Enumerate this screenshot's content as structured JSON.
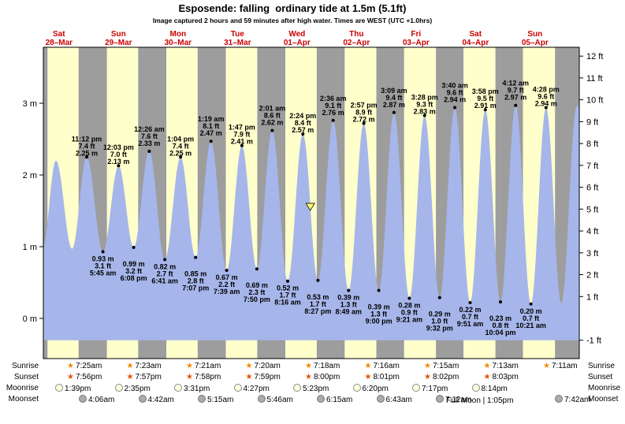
{
  "header": {
    "title": "Esposende: falling  ordinary tide at 1.5m (5.1ft)",
    "subtitle": "Image captured 2 hours and 59 minutes after high water. Times are WEST (UTC +1.0hrs)"
  },
  "colors": {
    "day_band": "#ffffcc",
    "night_band": "#9d9d9d",
    "tide_fill": "#a6b6ea",
    "day_label": "#cc0000",
    "marker_fill": "#ffff66",
    "text": "#000000"
  },
  "chart_data": {
    "type": "area",
    "x_range_days": [
      0.238,
      9.245
    ],
    "y_range_m": [
      -0.56,
      3.78
    ],
    "y_axis_left": [
      {
        "m": 3,
        "label": "3 m"
      },
      {
        "m": 2,
        "label": "2 m"
      },
      {
        "m": 1,
        "label": "1 m"
      },
      {
        "m": 0,
        "label": "0 m"
      }
    ],
    "y_axis_right": [
      {
        "ft": 12,
        "label": "12 ft"
      },
      {
        "ft": 11,
        "label": "11 ft"
      },
      {
        "ft": 10,
        "label": "10 ft"
      },
      {
        "ft": 9,
        "label": "9 ft"
      },
      {
        "ft": 8,
        "label": "8 ft"
      },
      {
        "ft": 7,
        "label": "7 ft"
      },
      {
        "ft": 6,
        "label": "6 ft"
      },
      {
        "ft": 5,
        "label": "5 ft"
      },
      {
        "ft": 4,
        "label": "4 ft"
      },
      {
        "ft": 3,
        "label": "3 ft"
      },
      {
        "ft": 2,
        "label": "2 ft"
      },
      {
        "ft": 1,
        "label": "1 ft"
      },
      {
        "ft": -1,
        "label": "-1 ft"
      }
    ],
    "days": [
      {
        "name": "Sat",
        "date": "28–Mar",
        "sunrise_h": 7.417,
        "sunset_h": 19.933
      },
      {
        "name": "Sun",
        "date": "29–Mar",
        "sunrise_h": 7.383,
        "sunset_h": 19.95
      },
      {
        "name": "Mon",
        "date": "30–Mar",
        "sunrise_h": 7.35,
        "sunset_h": 19.967
      },
      {
        "name": "Tue",
        "date": "31–Mar",
        "sunrise_h": 7.333,
        "sunset_h": 19.983
      },
      {
        "name": "Wed",
        "date": "01–Apr",
        "sunrise_h": 7.3,
        "sunset_h": 20.0
      },
      {
        "name": "Thu",
        "date": "02–Apr",
        "sunrise_h": 7.267,
        "sunset_h": 20.017
      },
      {
        "name": "Fri",
        "date": "03–Apr",
        "sunrise_h": 7.25,
        "sunset_h": 20.033
      },
      {
        "name": "Sat",
        "date": "04–Apr",
        "sunrise_h": 7.217,
        "sunset_h": 20.05
      },
      {
        "name": "Sun",
        "date": "05–Apr",
        "sunrise_h": 7.183,
        "sunset_h": 20.067
      }
    ],
    "events": [
      {
        "labeled": false,
        "day": 0,
        "hour": 5.3,
        "level": 0.95
      },
      {
        "labeled": false,
        "day": 0,
        "hour": 10.8,
        "level": 2.2
      },
      {
        "labeled": false,
        "day": 0,
        "hour": 17.3,
        "level": 0.97
      },
      {
        "labeled": true,
        "kind": "high",
        "day": 0,
        "hour": 23.2,
        "level": 2.25,
        "time": "11:12 pm",
        "ft": "7.4 ft",
        "m": "2.25 m",
        "stagger": 1
      },
      {
        "labeled": true,
        "kind": "low",
        "day": 1,
        "hour": 5.75,
        "level": 0.93,
        "time": "5:45 am",
        "ft": "3.1 ft",
        "m": "0.93 m",
        "stagger": 0
      },
      {
        "labeled": true,
        "kind": "high",
        "day": 1,
        "hour": 12.05,
        "level": 2.13,
        "time": "12:03 pm",
        "ft": "7.0 ft",
        "m": "2.13 m",
        "stagger": 1
      },
      {
        "labeled": true,
        "kind": "low",
        "day": 1,
        "hour": 18.133,
        "level": 0.99,
        "time": "6:08 pm",
        "ft": "3.2 ft",
        "m": "0.99 m",
        "stagger": 1
      },
      {
        "labeled": true,
        "kind": "high",
        "day": 2,
        "hour": 0.433,
        "level": 2.33,
        "time": "12:26 am",
        "ft": "7.6 ft",
        "m": "2.33 m",
        "stagger": 0
      },
      {
        "labeled": true,
        "kind": "low",
        "day": 2,
        "hour": 6.683,
        "level": 0.82,
        "time": "6:41 am",
        "ft": "2.7 ft",
        "m": "0.82 m",
        "stagger": 0
      },
      {
        "labeled": true,
        "kind": "high",
        "day": 2,
        "hour": 13.067,
        "level": 2.25,
        "time": "1:04 pm",
        "ft": "7.4 ft",
        "m": "2.25 m",
        "stagger": 1
      },
      {
        "labeled": true,
        "kind": "low",
        "day": 2,
        "hour": 19.117,
        "level": 0.85,
        "time": "7:07 pm",
        "ft": "2.8 ft",
        "m": "0.85 m",
        "stagger": 1
      },
      {
        "labeled": true,
        "kind": "high",
        "day": 3,
        "hour": 1.317,
        "level": 2.47,
        "time": "1:19 am",
        "ft": "8.1 ft",
        "m": "2.47 m",
        "stagger": 0
      },
      {
        "labeled": true,
        "kind": "low",
        "day": 3,
        "hour": 7.65,
        "level": 0.67,
        "time": "7:39 am",
        "ft": "2.2 ft",
        "m": "0.67 m",
        "stagger": 0
      },
      {
        "labeled": true,
        "kind": "high",
        "day": 3,
        "hour": 13.783,
        "level": 2.41,
        "time": "1:47 pm",
        "ft": "7.9 ft",
        "m": "2.41 m",
        "stagger": 1
      },
      {
        "labeled": true,
        "kind": "low",
        "day": 3,
        "hour": 19.833,
        "level": 0.69,
        "time": "7:50 pm",
        "ft": "2.3 ft",
        "m": "0.69 m",
        "stagger": 1
      },
      {
        "labeled": true,
        "kind": "high",
        "day": 4,
        "hour": 2.017,
        "level": 2.62,
        "time": "2:01 am",
        "ft": "8.6 ft",
        "m": "2.62 m",
        "stagger": 0
      },
      {
        "labeled": true,
        "kind": "low",
        "day": 4,
        "hour": 8.267,
        "level": 0.52,
        "time": "8:16 am",
        "ft": "1.7 ft",
        "m": "0.52 m",
        "stagger": 0
      },
      {
        "labeled": true,
        "kind": "high",
        "day": 4,
        "hour": 14.4,
        "level": 2.57,
        "time": "2:24 pm",
        "ft": "8.4 ft",
        "m": "2.57 m",
        "stagger": 1
      },
      {
        "labeled": true,
        "kind": "low",
        "day": 4,
        "hour": 20.45,
        "level": 0.53,
        "time": "8:27 pm",
        "ft": "1.7 ft",
        "m": "0.53 m",
        "stagger": 1
      },
      {
        "labeled": true,
        "kind": "high",
        "day": 5,
        "hour": 2.6,
        "level": 2.76,
        "time": "2:36 am",
        "ft": "9.1 ft",
        "m": "2.76 m",
        "stagger": 0
      },
      {
        "labeled": true,
        "kind": "low",
        "day": 5,
        "hour": 8.817,
        "level": 0.39,
        "time": "8:49 am",
        "ft": "1.3 ft",
        "m": "0.39 m",
        "stagger": 0
      },
      {
        "labeled": true,
        "kind": "high",
        "day": 5,
        "hour": 14.95,
        "level": 2.72,
        "time": "2:57 pm",
        "ft": "8.9 ft",
        "m": "2.72 m",
        "stagger": 1
      },
      {
        "labeled": true,
        "kind": "low",
        "day": 5,
        "hour": 21.0,
        "level": 0.39,
        "time": "9:00 pm",
        "ft": "1.3 ft",
        "m": "0.39 m",
        "stagger": 1
      },
      {
        "labeled": true,
        "kind": "high",
        "day": 6,
        "hour": 3.15,
        "level": 2.87,
        "time": "3:09 am",
        "ft": "9.4 ft",
        "m": "2.87 m",
        "stagger": 0
      },
      {
        "labeled": true,
        "kind": "low",
        "day": 6,
        "hour": 9.35,
        "level": 0.28,
        "time": "9:21 am",
        "ft": "0.9 ft",
        "m": "0.28 m",
        "stagger": 0
      },
      {
        "labeled": true,
        "kind": "high",
        "day": 6,
        "hour": 15.467,
        "level": 2.83,
        "time": "3:28 pm",
        "ft": "9.3 ft",
        "m": "2.83 m",
        "stagger": 1
      },
      {
        "labeled": true,
        "kind": "low",
        "day": 6,
        "hour": 21.533,
        "level": 0.29,
        "time": "9:32 pm",
        "ft": "1.0 ft",
        "m": "0.29 m",
        "stagger": 1
      },
      {
        "labeled": true,
        "kind": "high",
        "day": 7,
        "hour": 3.667,
        "level": 2.94,
        "time": "3:40 am",
        "ft": "9.6 ft",
        "m": "2.94 m",
        "stagger": 0
      },
      {
        "labeled": true,
        "kind": "low",
        "day": 7,
        "hour": 9.85,
        "level": 0.22,
        "time": "9:51 am",
        "ft": "0.7 ft",
        "m": "0.22 m",
        "stagger": 0
      },
      {
        "labeled": true,
        "kind": "high",
        "day": 7,
        "hour": 15.967,
        "level": 2.91,
        "time": "3:58 pm",
        "ft": "9.5 ft",
        "m": "2.91 m",
        "stagger": 1
      },
      {
        "labeled": true,
        "kind": "low",
        "day": 7,
        "hour": 22.067,
        "level": 0.23,
        "time": "10:04 pm",
        "ft": "0.8 ft",
        "m": "0.23 m",
        "stagger": 1
      },
      {
        "labeled": true,
        "kind": "high",
        "day": 8,
        "hour": 4.2,
        "level": 2.97,
        "time": "4:12 am",
        "ft": "9.7 ft",
        "m": "2.97 m",
        "stagger": 0
      },
      {
        "labeled": true,
        "kind": "low",
        "day": 8,
        "hour": 10.35,
        "level": 0.2,
        "time": "10:21 am",
        "ft": "0.7 ft",
        "m": "0.20 m",
        "stagger": 0
      },
      {
        "labeled": true,
        "kind": "high",
        "day": 8,
        "hour": 16.467,
        "level": 2.94,
        "time": "4:28 pm",
        "ft": "9.6 ft",
        "m": "2.94 m",
        "stagger": 1
      },
      {
        "labeled": false,
        "day": 8,
        "hour": 22.6,
        "level": 0.21
      },
      {
        "labeled": false,
        "day": 9,
        "hour": 4.9,
        "level": 2.97
      },
      {
        "labeled": false,
        "day": 9,
        "hour": 7.5,
        "level": 2.75
      }
    ],
    "marker": {
      "day": 4,
      "hour": 17.38,
      "level_m": 1.5
    }
  },
  "astro": {
    "labels": {
      "sunrise": "Sunrise",
      "sunset": "Sunset",
      "moonrise": "Moonrise",
      "moonset": "Moonset"
    },
    "sunrise": [
      {
        "col": 0,
        "time": "7:25am"
      },
      {
        "col": 1,
        "time": "7:23am"
      },
      {
        "col": 2,
        "time": "7:21am"
      },
      {
        "col": 3,
        "time": "7:20am"
      },
      {
        "col": 4,
        "time": "7:18am"
      },
      {
        "col": 5,
        "time": "7:16am"
      },
      {
        "col": 6,
        "time": "7:15am"
      },
      {
        "col": 7,
        "time": "7:13am"
      },
      {
        "col": 8,
        "time": "7:11am"
      }
    ],
    "sunset": [
      {
        "col": 0,
        "time": "7:56pm"
      },
      {
        "col": 1,
        "time": "7:57pm"
      },
      {
        "col": 2,
        "time": "7:58pm"
      },
      {
        "col": 3,
        "time": "7:59pm"
      },
      {
        "col": 4,
        "time": "8:00pm"
      },
      {
        "col": 5,
        "time": "8:01pm"
      },
      {
        "col": 6,
        "time": "8:02pm"
      },
      {
        "col": 7,
        "time": "8:03pm"
      }
    ],
    "moonrise": [
      {
        "col": 0,
        "time": "1:39pm"
      },
      {
        "col": 1,
        "time": "2:35pm"
      },
      {
        "col": 2,
        "time": "3:31pm"
      },
      {
        "col": 3,
        "time": "4:27pm"
      },
      {
        "col": 4,
        "time": "5:23pm"
      },
      {
        "col": 5,
        "time": "6:20pm"
      },
      {
        "col": 6,
        "time": "7:17pm"
      },
      {
        "col": 7,
        "time": "8:14pm"
      }
    ],
    "moonset": [
      {
        "col": 0,
        "time": "4:06am"
      },
      {
        "col": 1,
        "time": "4:42am"
      },
      {
        "col": 2,
        "time": "5:15am"
      },
      {
        "col": 3,
        "time": "5:46am"
      },
      {
        "col": 4,
        "time": "6:15am"
      },
      {
        "col": 5,
        "time": "6:43am"
      },
      {
        "col": 6,
        "time": "7:12am"
      },
      {
        "col": 8,
        "time": "7:42am"
      }
    ],
    "full_moon": "Full Moon | 1:05pm"
  }
}
